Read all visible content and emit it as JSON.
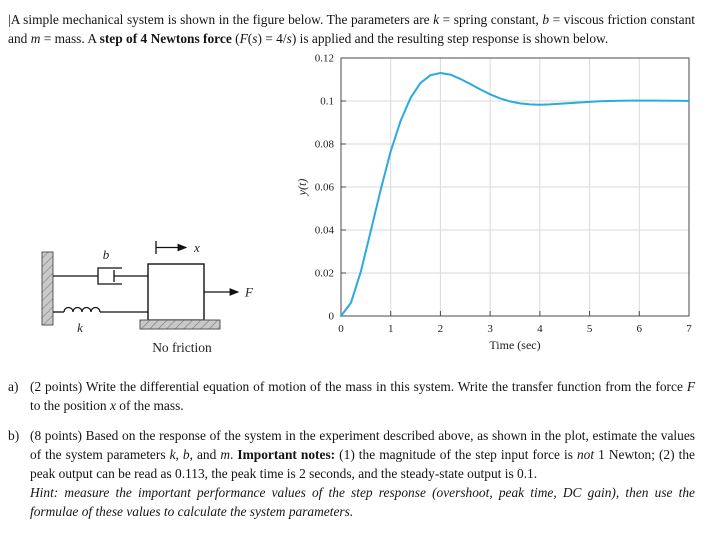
{
  "page": {
    "margin_marker": "|"
  },
  "intro_segments": [
    {
      "t": "A simple mechanical system is shown in the figure below.  The parameters are ",
      "s": ""
    },
    {
      "t": "k",
      "s": "i"
    },
    {
      "t": " = spring constant, ",
      "s": ""
    },
    {
      "t": "b",
      "s": "i"
    },
    {
      "t": " = viscous friction constant and ",
      "s": ""
    },
    {
      "t": "m",
      "s": "i"
    },
    {
      "t": " = mass.  A ",
      "s": ""
    },
    {
      "t": "step of 4 Newtons force",
      "s": "b"
    },
    {
      "t": " (",
      "s": ""
    },
    {
      "t": "F",
      "s": "i"
    },
    {
      "t": "(",
      "s": ""
    },
    {
      "t": "s",
      "s": "i"
    },
    {
      "t": ") = 4/",
      "s": ""
    },
    {
      "t": "s",
      "s": "i"
    },
    {
      "t": ") is applied and the resulting step response is shown below.",
      "s": ""
    }
  ],
  "diagram": {
    "labels": {
      "damper": "b",
      "spring": "k",
      "coord": "x",
      "force": "F",
      "caption": "No friction"
    }
  },
  "chart_data": {
    "type": "line",
    "title": "",
    "xlabel": "Time (sec)",
    "ylabel": "y(t)",
    "xlim": [
      0,
      7
    ],
    "ylim": [
      0,
      0.12
    ],
    "x_ticks": [
      0,
      1,
      2,
      3,
      4,
      5,
      6,
      7
    ],
    "y_ticks": [
      0,
      0.02,
      0.04,
      0.06,
      0.08,
      0.1,
      0.12
    ],
    "grid": true,
    "legend": false,
    "line_color": "#29abdf",
    "series": [
      {
        "name": "step response y(t)",
        "x": [
          0,
          0.2,
          0.4,
          0.6,
          0.8,
          1,
          1.2,
          1.4,
          1.6,
          1.8,
          2,
          2.2,
          2.4,
          2.6,
          2.8,
          3,
          3.2,
          3.4,
          3.6,
          3.8,
          4,
          4.2,
          4.4,
          4.6,
          4.8,
          5,
          5.2,
          5.4,
          5.6,
          5.8,
          6,
          6.2,
          6.4,
          6.6,
          6.8,
          7
        ],
        "y": [
          0,
          0.0061,
          0.0208,
          0.0396,
          0.0589,
          0.0766,
          0.0909,
          0.1015,
          0.1084,
          0.112,
          0.113,
          0.1123,
          0.1103,
          0.1079,
          0.1054,
          0.1031,
          0.1012,
          0.0998,
          0.0989,
          0.0984,
          0.0983,
          0.0984,
          0.0987,
          0.099,
          0.0993,
          0.0996,
          0.0999,
          0.1,
          0.1001,
          0.1002,
          0.1002,
          0.1002,
          0.1002,
          0.1001,
          0.1001,
          0.1
        ]
      }
    ]
  },
  "questions": {
    "a_label": "a)",
    "a_segments": [
      {
        "t": "(2 points) Write the differential equation of motion of the mass in this system.  Write the transfer function from the force ",
        "s": ""
      },
      {
        "t": "F",
        "s": "i"
      },
      {
        "t": " to the position ",
        "s": ""
      },
      {
        "t": "x",
        "s": "i"
      },
      {
        "t": " of the mass.",
        "s": ""
      }
    ],
    "b_label": "b)",
    "b_segments": [
      {
        "t": "(8 points) Based on the response of the system in the experiment described above, as shown in the plot, estimate the values of the system parameters ",
        "s": ""
      },
      {
        "t": "k",
        "s": "i"
      },
      {
        "t": ", ",
        "s": ""
      },
      {
        "t": "b",
        "s": "i"
      },
      {
        "t": ", and ",
        "s": ""
      },
      {
        "t": "m",
        "s": "i"
      },
      {
        "t": ".  ",
        "s": ""
      },
      {
        "t": "Important notes:",
        "s": "b"
      },
      {
        "t": "  (1) the magnitude of the step input force is ",
        "s": ""
      },
      {
        "t": "not",
        "s": "i"
      },
      {
        "t": " 1 Newton; (2) the peak output can be read as 0.113, the peak time is 2 seconds, and the steady-state output is 0.1.",
        "s": ""
      }
    ],
    "b_hint_segments": [
      {
        "t": "Hint:  measure the important performance values of the step response (overshoot, peak time, DC gain), then use the formulae of these values to calculate the system parameters.",
        "s": "i"
      }
    ]
  }
}
